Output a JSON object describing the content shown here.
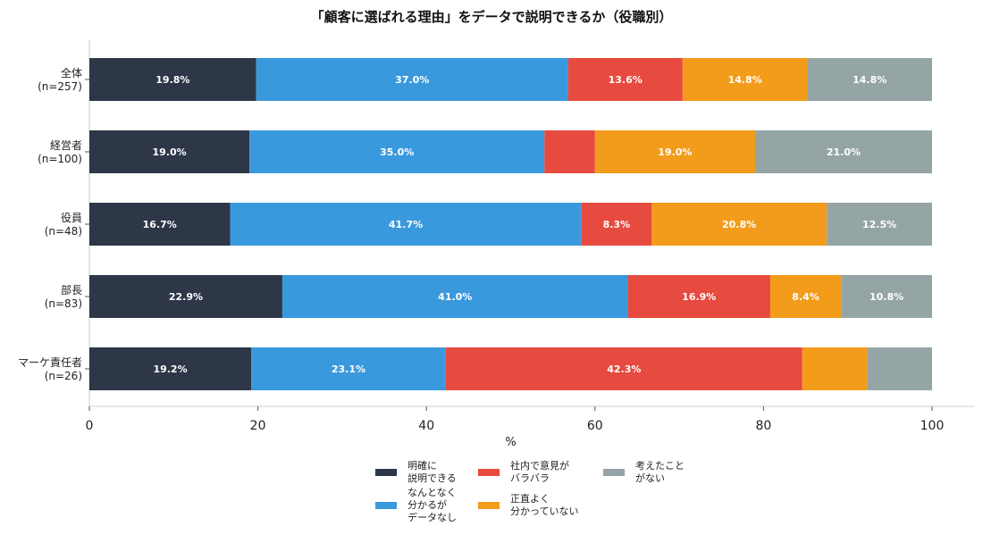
{
  "chart_data": {
    "type": "bar",
    "orientation": "horizontal",
    "stacked": true,
    "title": "「顧客に選ばれる理由」をデータで説明できるか（役職別）",
    "xlabel": "%",
    "ylabel": "",
    "xlim": [
      0,
      100
    ],
    "xticks": [
      "0",
      "20",
      "40",
      "60",
      "80",
      "100"
    ],
    "grid": false,
    "legend_position": "bottom",
    "categories": [
      "全体\n(n=257)",
      "経営者\n(n=100)",
      "役員\n(n=48)",
      "部長\n(n=83)",
      "マーケ責任者\n(n=26)"
    ],
    "series": [
      {
        "name": "明確に\n説明できる",
        "color": "#2d3748",
        "values": [
          19.8,
          19.0,
          16.7,
          22.9,
          19.2
        ]
      },
      {
        "name": "なんとなく\n分かるが\nデータなし",
        "color": "#3a99dd",
        "values": [
          37.0,
          35.0,
          41.7,
          41.0,
          23.1
        ]
      },
      {
        "name": "社内で意見が\nバラバラ",
        "color": "#e74a3f",
        "values": [
          13.6,
          6.0,
          8.3,
          16.9,
          42.3
        ]
      },
      {
        "name": "正直よく\n分かっていない",
        "color": "#f39c1b",
        "values": [
          14.8,
          19.0,
          20.8,
          8.4,
          7.7
        ]
      },
      {
        "name": "考えたこと\nがない",
        "color": "#95a5a6",
        "values": [
          14.8,
          21.0,
          12.5,
          10.8,
          7.7
        ]
      }
    ]
  }
}
